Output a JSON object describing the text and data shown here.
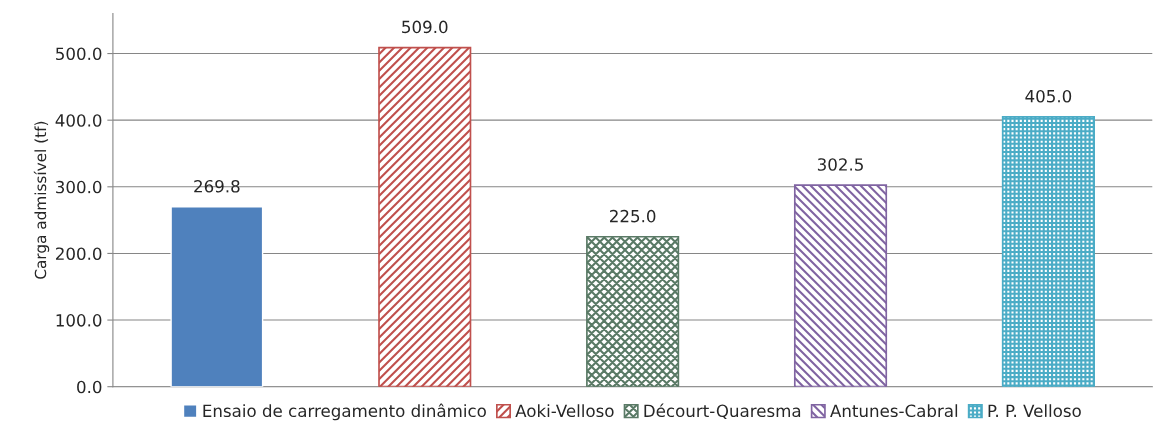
{
  "chart_data": {
    "type": "bar",
    "ylabel": "Carga admissível (tf)",
    "categories": [
      null
    ],
    "series": [
      {
        "name": "Ensaio de carregamento dinâmico",
        "color": "#4f81bd",
        "values": [
          269.8
        ]
      },
      {
        "name": "Aoki-Velloso",
        "color": "#c0504d",
        "values": [
          509.0
        ]
      },
      {
        "name": "Décourt-Quaresma",
        "color": "#5a7a66",
        "values": [
          225.0
        ]
      },
      {
        "name": "Antunes-Cabral",
        "color": "#8064a2",
        "values": [
          302.5
        ]
      },
      {
        "name": "P. P. Velloso",
        "color": "#4bacc6",
        "values": [
          405.0
        ]
      }
    ],
    "ylim": [
      0,
      560
    ],
    "yticks": [
      {
        "value": 0,
        "label": "0.0"
      },
      {
        "value": 100,
        "label": "100.0"
      },
      {
        "value": 200,
        "label": "200.0"
      },
      {
        "value": 300,
        "label": "300.0"
      },
      {
        "value": 400,
        "label": "400.0"
      },
      {
        "value": 500,
        "label": "500.0"
      }
    ],
    "value_labels": [
      "269.8",
      "509.0",
      "225.0",
      "302.5",
      "405.0"
    ],
    "grid": "y",
    "legend": "bottom",
    "tick_labels": "y"
  }
}
